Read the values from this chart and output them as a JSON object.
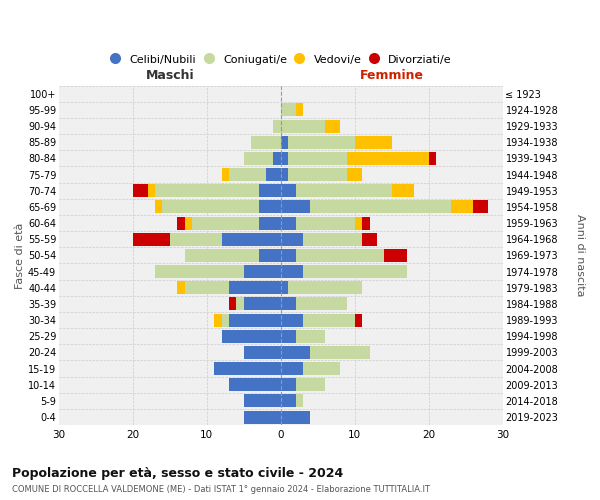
{
  "age_groups": [
    "0-4",
    "5-9",
    "10-14",
    "15-19",
    "20-24",
    "25-29",
    "30-34",
    "35-39",
    "40-44",
    "45-49",
    "50-54",
    "55-59",
    "60-64",
    "65-69",
    "70-74",
    "75-79",
    "80-84",
    "85-89",
    "90-94",
    "95-99",
    "100+"
  ],
  "birth_years": [
    "2019-2023",
    "2014-2018",
    "2009-2013",
    "2004-2008",
    "1999-2003",
    "1994-1998",
    "1989-1993",
    "1984-1988",
    "1979-1983",
    "1974-1978",
    "1969-1973",
    "1964-1968",
    "1959-1963",
    "1954-1958",
    "1949-1953",
    "1944-1948",
    "1939-1943",
    "1934-1938",
    "1929-1933",
    "1924-1928",
    "≤ 1923"
  ],
  "colors": {
    "celibe": "#4472c4",
    "coniugato": "#c5d9a0",
    "vedovo": "#ffc000",
    "divorziato": "#cc0000"
  },
  "maschi": {
    "celibe": [
      5,
      5,
      7,
      9,
      5,
      8,
      7,
      5,
      7,
      5,
      3,
      8,
      3,
      3,
      3,
      2,
      1,
      0,
      0,
      0,
      0
    ],
    "coniugato": [
      0,
      0,
      0,
      0,
      0,
      0,
      1,
      1,
      6,
      12,
      10,
      7,
      9,
      13,
      14,
      5,
      4,
      4,
      1,
      0,
      0
    ],
    "vedovo": [
      0,
      0,
      0,
      0,
      0,
      0,
      1,
      0,
      1,
      0,
      0,
      0,
      1,
      1,
      1,
      1,
      0,
      0,
      0,
      0,
      0
    ],
    "divorziato": [
      0,
      0,
      0,
      0,
      0,
      0,
      0,
      1,
      0,
      0,
      0,
      5,
      1,
      0,
      2,
      0,
      0,
      0,
      0,
      0,
      0
    ]
  },
  "femmine": {
    "nubile": [
      4,
      2,
      2,
      3,
      4,
      2,
      3,
      2,
      1,
      3,
      2,
      3,
      2,
      4,
      2,
      1,
      1,
      1,
      0,
      0,
      0
    ],
    "coniugata": [
      0,
      1,
      4,
      5,
      8,
      4,
      7,
      7,
      10,
      14,
      12,
      8,
      8,
      19,
      13,
      8,
      8,
      9,
      6,
      2,
      0
    ],
    "vedova": [
      0,
      0,
      0,
      0,
      0,
      0,
      0,
      0,
      0,
      0,
      0,
      0,
      1,
      3,
      3,
      2,
      11,
      5,
      2,
      1,
      0
    ],
    "divorziata": [
      0,
      0,
      0,
      0,
      0,
      0,
      1,
      0,
      0,
      0,
      3,
      2,
      1,
      2,
      0,
      0,
      1,
      0,
      0,
      0,
      0
    ]
  },
  "xlim": 30,
  "title": "Popolazione per età, sesso e stato civile - 2024",
  "subtitle": "COMUNE DI ROCCELLA VALDEMONE (ME) - Dati ISTAT 1° gennaio 2024 - Elaborazione TUTTITALIA.IT",
  "ylabel_left": "Fasce di età",
  "ylabel_right": "Anni di nascita",
  "xlabel_left": "Maschi",
  "xlabel_right": "Femmine",
  "legend_labels": [
    "Celibi/Nubili",
    "Coniugati/e",
    "Vedovi/e",
    "Divorziati/e"
  ],
  "background_color": "#f0f0f0"
}
